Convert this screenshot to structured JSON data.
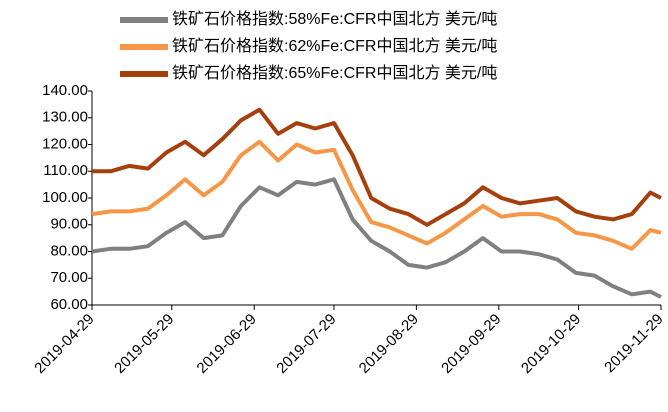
{
  "chart_data": {
    "type": "line",
    "x": [
      "2019-04-29",
      "2019-05-06",
      "2019-05-13",
      "2019-05-20",
      "2019-05-27",
      "2019-06-03",
      "2019-06-10",
      "2019-06-17",
      "2019-06-24",
      "2019-07-01",
      "2019-07-08",
      "2019-07-15",
      "2019-07-22",
      "2019-07-29",
      "2019-08-05",
      "2019-08-12",
      "2019-08-19",
      "2019-08-26",
      "2019-09-02",
      "2019-09-09",
      "2019-09-16",
      "2019-09-23",
      "2019-09-30",
      "2019-10-07",
      "2019-10-14",
      "2019-10-21",
      "2019-10-28",
      "2019-11-04",
      "2019-11-11",
      "2019-11-18",
      "2019-11-25",
      "2019-11-29"
    ],
    "series": [
      {
        "name": "铁矿石价格指数:58%Fe:CFR中国北方 美元/吨",
        "color": "#808080",
        "values": [
          80,
          81,
          81,
          82,
          87,
          91,
          85,
          86,
          97,
          104,
          101,
          106,
          105,
          107,
          92,
          84,
          80,
          75,
          74,
          76,
          80,
          85,
          80,
          80,
          79,
          77,
          72,
          71,
          67,
          64,
          65,
          63
        ]
      },
      {
        "name": "铁矿石价格指数:62%Fe:CFR中国北方 美元/吨",
        "color": "#f79646",
        "values": [
          94,
          95,
          95,
          96,
          101,
          107,
          101,
          106,
          116,
          121,
          114,
          120,
          117,
          118,
          103,
          91,
          89,
          86,
          83,
          87,
          92,
          97,
          93,
          94,
          94,
          92,
          87,
          86,
          84,
          81,
          88,
          87
        ]
      },
      {
        "name": "铁矿石价格指数:65%Fe:CFR中国北方 美元/吨",
        "color": "#a5400c",
        "values": [
          110,
          110,
          112,
          111,
          117,
          121,
          116,
          122,
          129,
          133,
          124,
          128,
          126,
          128,
          116,
          100,
          96,
          94,
          90,
          94,
          98,
          104,
          100,
          98,
          99,
          100,
          95,
          93,
          92,
          94,
          102,
          100
        ]
      }
    ],
    "ylim": [
      60,
      140
    ],
    "yticks": [
      {
        "value": 60,
        "label": "60.00"
      },
      {
        "value": 70,
        "label": "70.00"
      },
      {
        "value": 80,
        "label": "80.00"
      },
      {
        "value": 90,
        "label": "90.00"
      },
      {
        "value": 100,
        "label": "100.00"
      },
      {
        "value": 110,
        "label": "110.00"
      },
      {
        "value": 120,
        "label": "120.00"
      },
      {
        "value": 130,
        "label": "130.00"
      },
      {
        "value": 140,
        "label": "140.00"
      }
    ],
    "xlim": [
      "2019-04-29",
      "2019-11-29"
    ],
    "xticks": [
      "2019-04-29",
      "2019-05-29",
      "2019-06-29",
      "2019-07-29",
      "2019-08-29",
      "2019-09-29",
      "2019-10-29",
      "2019-11-29"
    ]
  }
}
